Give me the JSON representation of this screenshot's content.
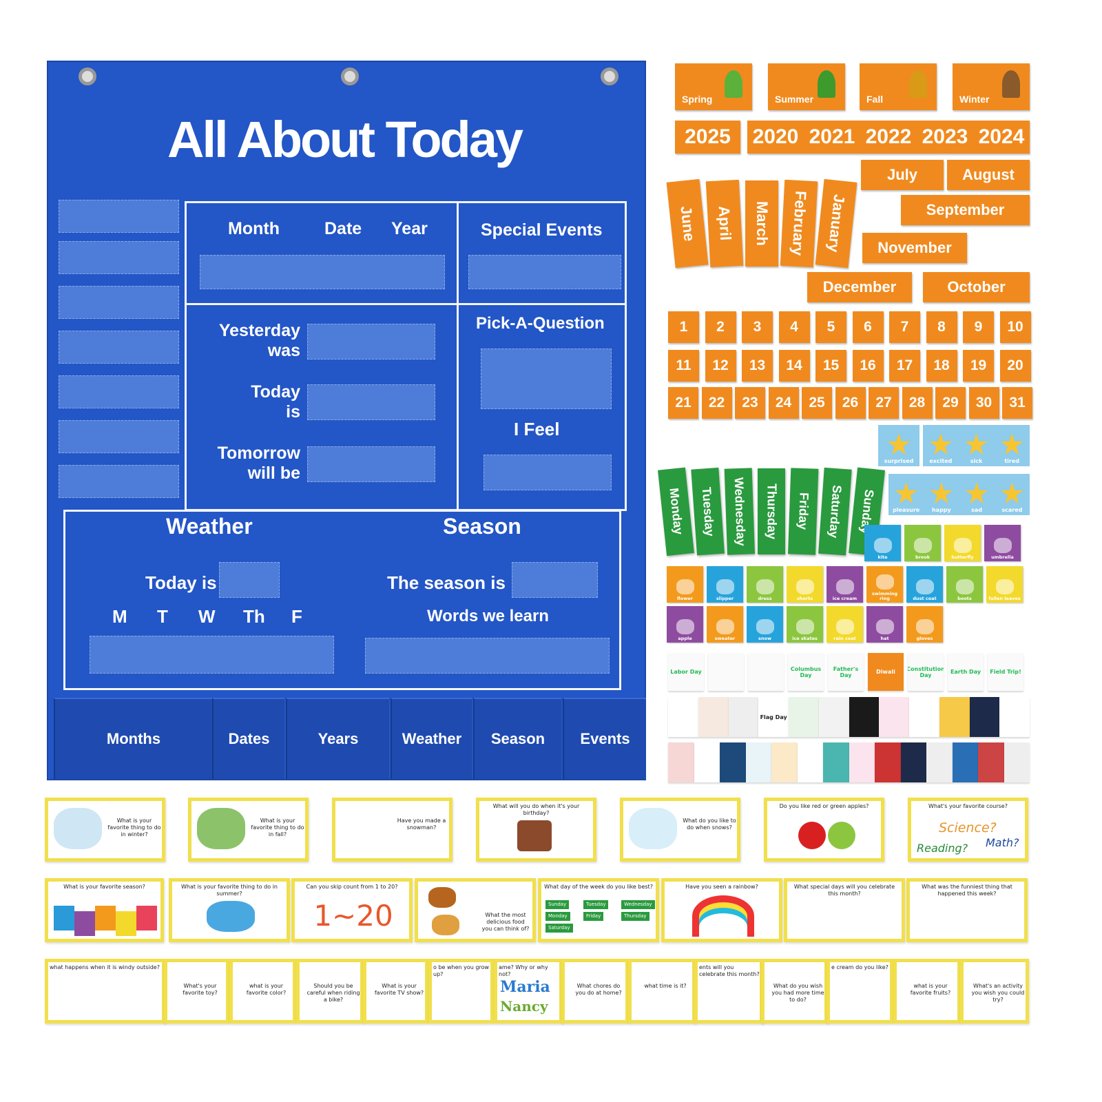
{
  "chart": {
    "title": "All About Today",
    "headers": {
      "month": "Month",
      "date": "Date",
      "year": "Year",
      "special_events": "Special Events",
      "pick_a_question": "Pick-A-Question",
      "i_feel": "I Feel"
    },
    "yesterday": [
      "Yesterday",
      "was"
    ],
    "today": [
      "Today",
      "is"
    ],
    "tomorrow": [
      "Tomorrow",
      "will be"
    ],
    "weather": {
      "heading": "Weather",
      "today_is": "Today is",
      "days": [
        "M",
        "T",
        "W",
        "Th",
        "F"
      ]
    },
    "season": {
      "heading": "Season",
      "season_is": "The season is",
      "words": "Words we learn"
    },
    "pockets": [
      "Months",
      "Dates",
      "Years",
      "Weather",
      "Season",
      "Events"
    ],
    "colors": {
      "panel": "#2356c6",
      "cards": "#f08a1e",
      "weekdays": "#2a9a3e",
      "question_border": "#f1df4c"
    }
  },
  "seasons": [
    "Spring",
    "Summer",
    "Fall",
    "Winter"
  ],
  "years": [
    "2025",
    "2020",
    "2021",
    "2022",
    "2023",
    "2024"
  ],
  "month_fan": [
    "June",
    "April",
    "March",
    "February",
    "January"
  ],
  "months": [
    "July",
    "August",
    "September",
    "November",
    "December",
    "October"
  ],
  "dates": [
    "1",
    "2",
    "3",
    "4",
    "5",
    "6",
    "7",
    "8",
    "9",
    "10",
    "11",
    "12",
    "13",
    "14",
    "15",
    "16",
    "17",
    "18",
    "19",
    "20",
    "21",
    "22",
    "23",
    "24",
    "25",
    "26",
    "27",
    "28",
    "29",
    "30",
    "31"
  ],
  "weekdays": [
    "Monday",
    "Tuesday",
    "Wednesday",
    "Thursday",
    "Friday",
    "Saturday",
    "Sunday"
  ],
  "feelings_row1": [
    "surprised",
    "excited",
    "sick",
    "tired"
  ],
  "feelings_row2": [
    "pleasure",
    "happy",
    "sad",
    "scared"
  ],
  "vocab_row1": [
    "kite",
    "brook",
    "butterfly",
    "umbrella"
  ],
  "vocab_row2": [
    "flower",
    "slipper",
    "dress",
    "shorts",
    "ice cream",
    "swimming ring",
    "dust coat",
    "boots",
    "fallen leaves"
  ],
  "vocab_row3": [
    "apple",
    "sweater",
    "snow",
    "ice skates",
    "rain coat",
    "hat",
    "gloves"
  ],
  "special_days": [
    "Labor Day",
    "",
    "",
    "Columbus Day",
    "Father's Day",
    "Diwali",
    "Constitution Day",
    "Earth Day",
    "Field Trip!"
  ],
  "special_days_row2": [
    "",
    "",
    "",
    "Flag Day",
    "",
    "",
    "",
    "",
    "",
    "",
    "",
    ""
  ],
  "question_cards_row1": [
    "What is your favorite thing to do in winter?",
    "What is your favorite thing to do in fall?",
    "Have you made a snowman?",
    "What will you do when it's your birthday?",
    "What do you like to do when snows?",
    "Do you like red or green apples?",
    "What's your favorite course?"
  ],
  "course_words": [
    "Science?",
    "Reading?",
    "Math?"
  ],
  "question_cards_row2": [
    "What is your favorite season?",
    "What is your favorite thing to do in summer?",
    "Can you skip count from 1 to 20?",
    "What the most delicious food you can think of?",
    "What day of the week do you like best?",
    "Have you seen a rainbow?",
    "What special days will you celebrate this month?",
    "What was the funniest thing that happened this week?"
  ],
  "skip_count": "1~20",
  "rainbow_days": [
    "Sunday",
    "Tuesday",
    "Wednesday",
    "Monday",
    "Friday",
    "Thursday",
    "Saturday"
  ],
  "question_cards_row3": [
    "what happens when it is windy outside?",
    "What's your favorite toy?",
    "what is your favorite color?",
    "Should you be careful when riding a bike?",
    "What is your favorite TV show?",
    "o be when you grow up?",
    "ame? Why or why not?",
    "What chores do you do at home?",
    "what time is it?",
    "ents will you celebrate this month?",
    "What do you wish you had more time to do?",
    "e cream do you like?",
    "what is your favorite fruits?",
    "What's an activity you wish you could try?"
  ],
  "names": [
    "Maria",
    "Nancy"
  ]
}
